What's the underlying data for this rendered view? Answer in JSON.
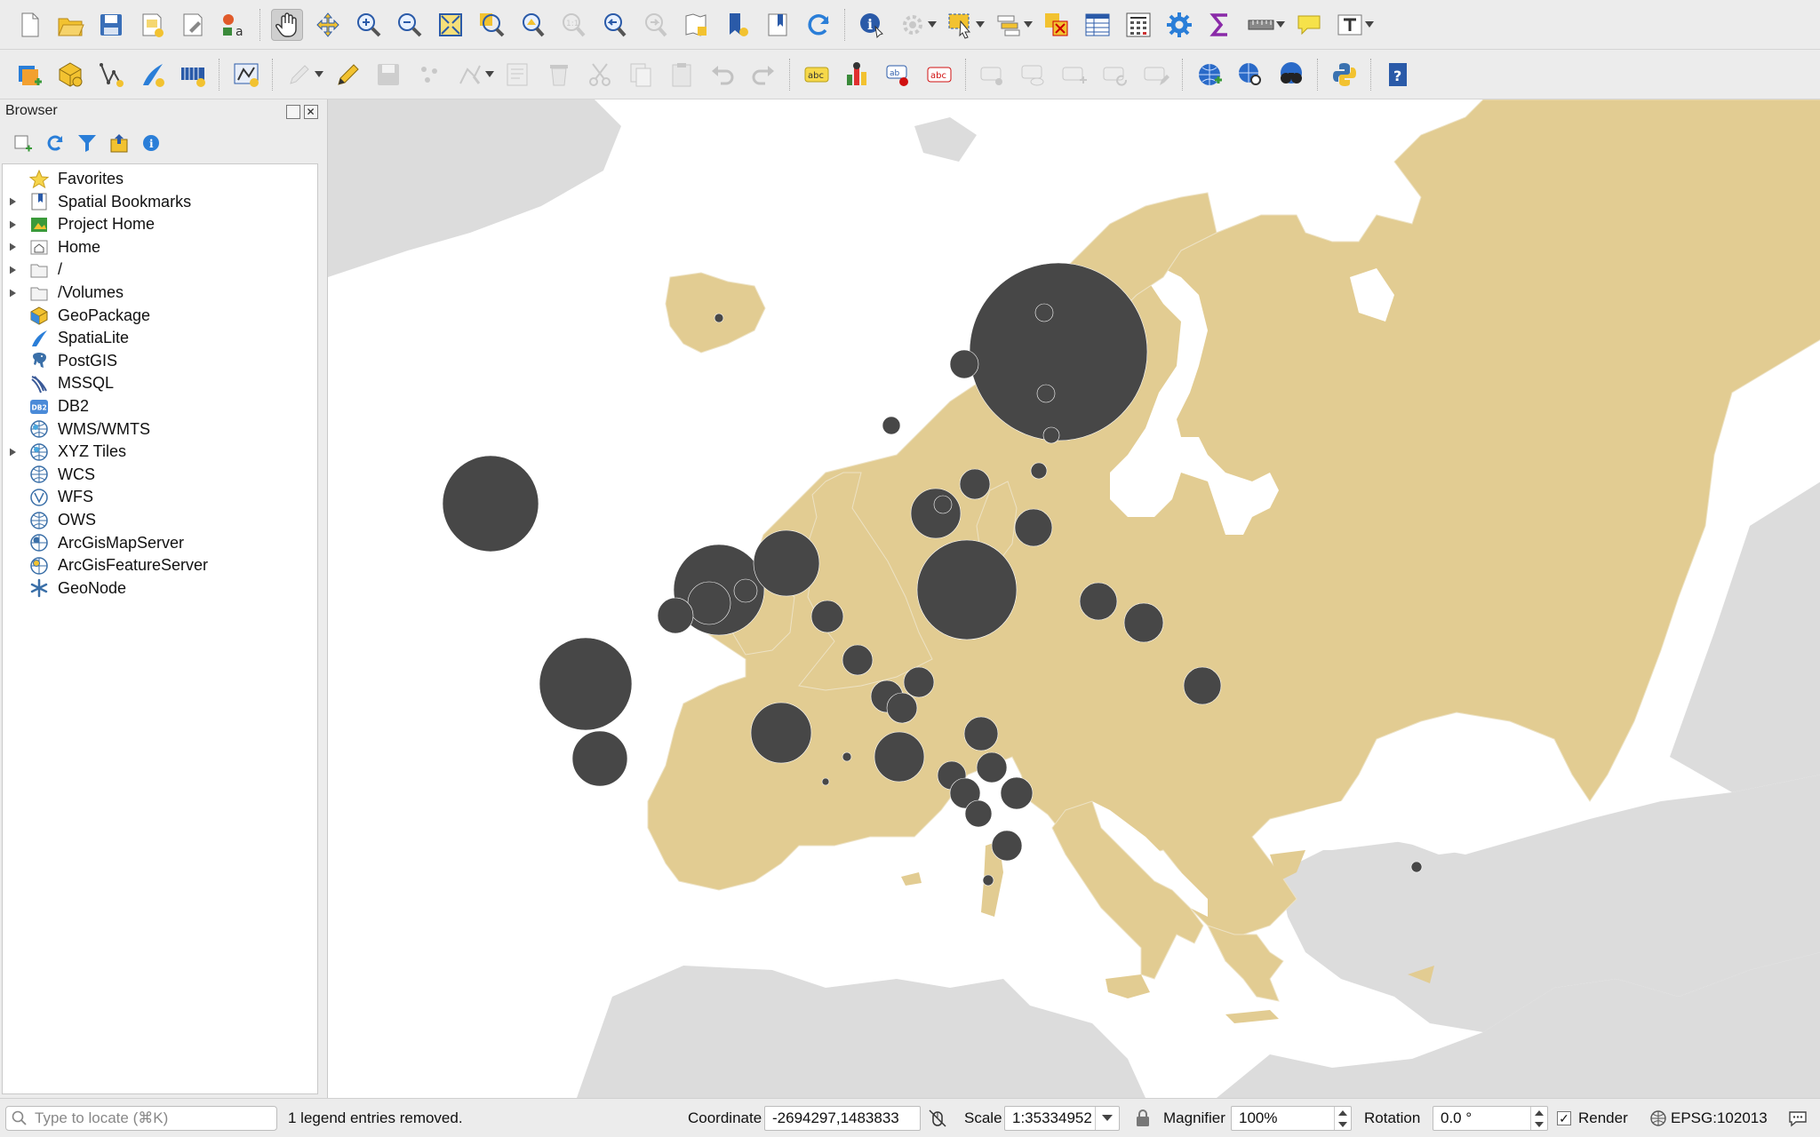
{
  "toolbar1": {
    "tools": [
      "new-project",
      "open-project",
      "save-project",
      "new-print-layout",
      "layout-manager",
      "style-manager",
      "pan-map",
      "pan-to-selection",
      "zoom-in",
      "zoom-out",
      "zoom-full",
      "zoom-to-selection",
      "zoom-to-layer",
      "zoom-native",
      "zoom-last",
      "zoom-next",
      "new-map-view",
      "new-bookmark",
      "show-bookmarks",
      "refresh",
      "identify",
      "run-action",
      "select-features",
      "attribute-table-select",
      "deselect-all",
      "open-attribute-table",
      "open-field-calculator",
      "processing-toolbox",
      "statistics",
      "measure",
      "map-tips",
      "text-annotation"
    ]
  },
  "toolbar2": {
    "tools": [
      "data-source-manager",
      "new-geopackage-layer",
      "new-shapefile-layer",
      "new-spatialite-layer",
      "new-virtual-layer",
      "digitize-with-segment",
      "current-edits",
      "toggle-editing",
      "save-edits",
      "add-feature",
      "vertex-tool",
      "modify-attributes",
      "delete-selected",
      "cut-features",
      "copy-features",
      "paste-features",
      "undo",
      "redo",
      "label-toolbar-label",
      "diagram-properties",
      "pin-labels",
      "highlight-pinned",
      "show-hide-labels",
      "preview-labels",
      "move-label",
      "rotate-label",
      "change-label",
      "metasearch",
      "metasearch-search",
      "geocode",
      "python-console",
      "help"
    ]
  },
  "browser": {
    "title": "Browser",
    "tools": [
      "add-selected-layers",
      "refresh",
      "filter-browser",
      "collapse-all",
      "enable-properties"
    ],
    "items": [
      {
        "label": "Favorites",
        "icon": "star-icon",
        "expandable": false
      },
      {
        "label": "Spatial Bookmarks",
        "icon": "bookmark-icon",
        "expandable": true
      },
      {
        "label": "Project Home",
        "icon": "project-home-icon",
        "expandable": true
      },
      {
        "label": "Home",
        "icon": "home-icon",
        "expandable": true
      },
      {
        "label": "/",
        "icon": "folder-icon",
        "expandable": true
      },
      {
        "label": "/Volumes",
        "icon": "folder-icon",
        "expandable": true
      },
      {
        "label": "GeoPackage",
        "icon": "geopackage-icon",
        "expandable": false
      },
      {
        "label": "SpatiaLite",
        "icon": "spatialite-icon",
        "expandable": false
      },
      {
        "label": "PostGIS",
        "icon": "postgis-icon",
        "expandable": false
      },
      {
        "label": "MSSQL",
        "icon": "mssql-icon",
        "expandable": false
      },
      {
        "label": "DB2",
        "icon": "db2-icon",
        "expandable": false
      },
      {
        "label": "WMS/WMTS",
        "icon": "wms-globe-icon",
        "expandable": false
      },
      {
        "label": "XYZ Tiles",
        "icon": "xyz-globe-icon",
        "expandable": true
      },
      {
        "label": "WCS",
        "icon": "wcs-globe-icon",
        "expandable": false
      },
      {
        "label": "WFS",
        "icon": "wfs-icon",
        "expandable": false
      },
      {
        "label": "OWS",
        "icon": "ows-globe-icon",
        "expandable": false
      },
      {
        "label": "ArcGisMapServer",
        "icon": "arcgis-map-icon",
        "expandable": false
      },
      {
        "label": "ArcGisFeatureServer",
        "icon": "arcgis-feature-icon",
        "expandable": false
      },
      {
        "label": "GeoNode",
        "icon": "geonode-icon",
        "expandable": false
      }
    ]
  },
  "map": {
    "land_color": "#e2cc92",
    "outside_color": "#dcdcdc",
    "sea_color": "#ffffff",
    "symbol_color": "#474747"
  },
  "status": {
    "locator_placeholder": "Type to locate (⌘K)",
    "message": "1 legend entries removed.",
    "coordinate_label": "Coordinate",
    "coordinate_value": "-2694297,1483833",
    "scale_label": "Scale",
    "scale_value": "1:35334952",
    "magnifier_label": "Magnifier",
    "magnifier_value": "100%",
    "rotation_label": "Rotation",
    "rotation_value": "0.0 °",
    "render_label": "Render",
    "render_checked": "✓",
    "crs": "EPSG:102013"
  }
}
